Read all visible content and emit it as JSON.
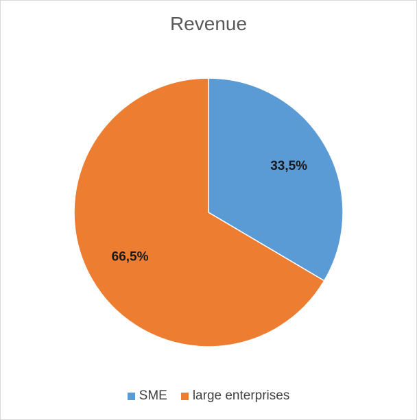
{
  "chart_data": {
    "type": "pie",
    "title": "Revenue",
    "categories": [
      "SME",
      "large enterprises"
    ],
    "values": [
      33.5,
      66.5
    ],
    "data_labels": [
      "33,5%",
      "66,5%"
    ],
    "colors": [
      "#5b9bd5",
      "#ed7d31"
    ],
    "slice_border_color": "#ffffff",
    "legend_position": "bottom"
  }
}
